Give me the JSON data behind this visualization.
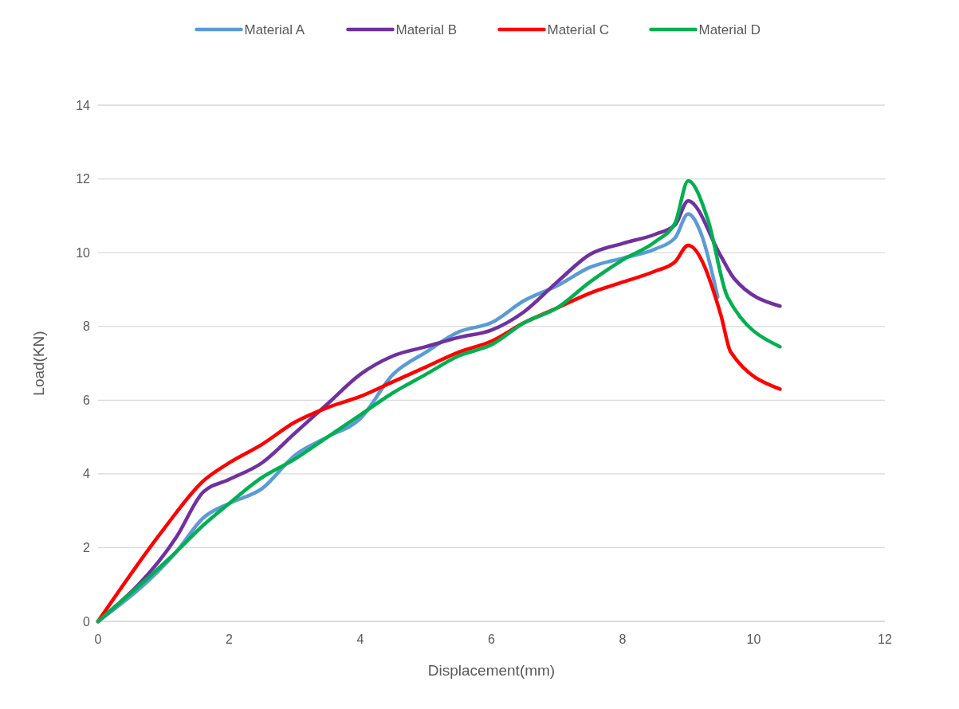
{
  "chart_data": {
    "type": "line",
    "xlabel": "Displacement(mm)",
    "ylabel": "Load(KN)",
    "xlim": [
      0,
      12
    ],
    "xticks": [
      0,
      2,
      4,
      6,
      8,
      10,
      12
    ],
    "ylim": [
      0,
      14
    ],
    "yticks": [
      0,
      2,
      4,
      6,
      8,
      10,
      12,
      14
    ],
    "grid": "y",
    "legend": "top",
    "line_style": "solid",
    "marker": "none",
    "series": [
      {
        "name": "Material A",
        "color": "#5b9bd5",
        "x": [
          0,
          1.2,
          1.6,
          2,
          2.5,
          3,
          3.5,
          4,
          4.5,
          5,
          5.5,
          6,
          6.5,
          7,
          7.5,
          8,
          8.5,
          8.8,
          9,
          9.2,
          9.45
        ],
        "values": [
          0,
          1.9,
          2.8,
          3.2,
          3.6,
          4.5,
          5.0,
          5.5,
          6.7,
          7.3,
          7.85,
          8.1,
          8.7,
          9.1,
          9.6,
          9.85,
          10.1,
          10.4,
          11.05,
          10.5,
          8.8
        ]
      },
      {
        "name": "Material B",
        "color": "#7030a0",
        "x": [
          0,
          1.2,
          1.6,
          2,
          2.5,
          3,
          3.5,
          4,
          4.5,
          5,
          5.5,
          6,
          6.5,
          7,
          7.5,
          8,
          8.5,
          8.8,
          9,
          9.5,
          9.7,
          10.4
        ],
        "values": [
          0,
          2.3,
          3.5,
          3.85,
          4.3,
          5.1,
          5.9,
          6.7,
          7.2,
          7.45,
          7.7,
          7.9,
          8.4,
          9.2,
          9.95,
          10.25,
          10.5,
          10.75,
          11.4,
          9.9,
          9.3,
          8.55
        ]
      },
      {
        "name": "Material C",
        "color": "#ff0000",
        "x": [
          0,
          1,
          1.6,
          2,
          2.5,
          3,
          3.5,
          4,
          4.5,
          5,
          5.5,
          6,
          6.5,
          7,
          7.5,
          8,
          8.5,
          8.8,
          9,
          9.5,
          9.65,
          10.4
        ],
        "values": [
          0,
          2.5,
          3.8,
          4.3,
          4.8,
          5.4,
          5.8,
          6.1,
          6.5,
          6.9,
          7.3,
          7.6,
          8.1,
          8.5,
          8.9,
          9.2,
          9.5,
          9.75,
          10.2,
          8.3,
          7.3,
          6.3
        ]
      },
      {
        "name": "Material D",
        "color": "#00b050",
        "x": [
          0,
          1.2,
          1.6,
          2,
          2.5,
          3,
          3.5,
          4,
          4.5,
          5,
          5.5,
          6,
          6.5,
          7,
          7.5,
          8,
          8.5,
          8.8,
          9,
          9.3,
          9.6,
          10.4
        ],
        "values": [
          0,
          1.9,
          2.6,
          3.2,
          3.9,
          4.4,
          5.0,
          5.6,
          6.2,
          6.7,
          7.2,
          7.5,
          8.1,
          8.5,
          9.2,
          9.8,
          10.3,
          10.8,
          11.95,
          10.9,
          8.8,
          7.45
        ]
      }
    ]
  }
}
